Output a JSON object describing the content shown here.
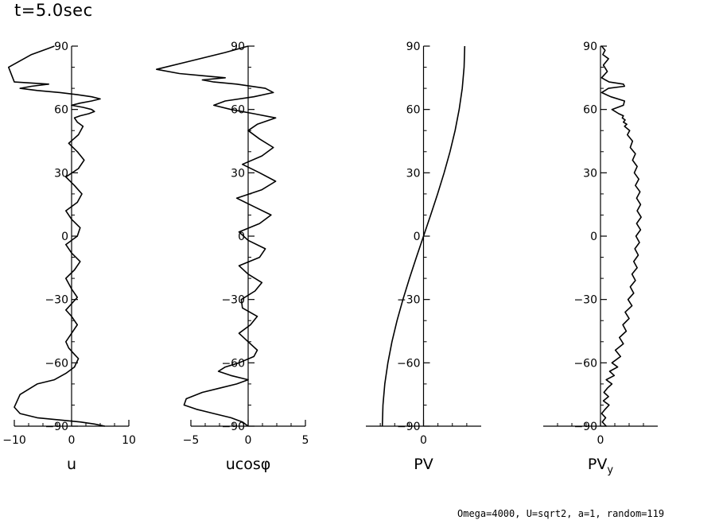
{
  "title": "t=5.0sec",
  "footer": "Omega=4000, U=sqrt2, a=1, random=119",
  "chart_data": [
    {
      "type": "line",
      "xlabel": "u",
      "xlim": [
        -10,
        10
      ],
      "xticks": [
        -10,
        0,
        10
      ],
      "ylim": [
        -90,
        90
      ],
      "yticks": [
        -90,
        -60,
        -30,
        0,
        30,
        60,
        90
      ],
      "series": [
        {
          "x": [
            5.8,
            4.0,
            1.5,
            -6,
            -9,
            -10,
            -9,
            -6,
            -3,
            -1,
            0.5,
            1.2,
            0.5,
            -0.5,
            -1,
            0,
            1,
            0,
            -1,
            0,
            1,
            0,
            -1,
            0.5,
            1.5,
            0,
            -1,
            1,
            1.5,
            0,
            -1,
            1,
            1.8,
            0.5,
            -1,
            1.2,
            2.2,
            1.0,
            -0.5,
            1.2,
            2.0,
            1.0,
            0.5,
            1.5,
            3.0,
            4.0,
            3.5,
            2.0,
            0,
            1.5,
            3.5,
            5.0,
            3.5,
            1.0,
            -2,
            -6,
            -9,
            -7,
            -4,
            -10,
            -11,
            -7,
            -4,
            -3
          ],
          "y": [
            -90,
            -89,
            -88,
            -86,
            -84,
            -81,
            -75,
            -70,
            -68,
            -65,
            -62,
            -58,
            -56,
            -53,
            -50,
            -46,
            -42,
            -38,
            -35,
            -32,
            -29,
            -25,
            -20,
            -16,
            -12,
            -8,
            -4,
            0,
            4,
            8,
            12,
            16,
            20,
            24,
            28,
            32,
            36,
            40,
            44,
            48,
            52,
            54,
            56,
            57,
            58,
            59,
            60,
            61,
            62,
            63,
            64,
            65,
            66,
            67,
            68,
            69,
            70,
            71,
            72,
            73,
            80,
            86,
            89,
            90
          ]
        }
      ]
    },
    {
      "type": "line",
      "xlabel": "ucosφ",
      "xlim": [
        -5,
        5
      ],
      "xticks": [
        -5,
        0,
        5
      ],
      "ylim": [
        -90,
        90
      ],
      "yticks": [
        -90,
        -60,
        -30,
        0,
        30,
        60,
        90
      ],
      "series": [
        {
          "x": [
            0,
            -0.5,
            -1.5,
            -3,
            -4.5,
            -5.6,
            -5.4,
            -4.0,
            -2.5,
            -1.0,
            0,
            -1.5,
            -2.6,
            -2.0,
            -0.8,
            0.5,
            0.8,
            0,
            -0.8,
            0.2,
            0.8,
            -0.5,
            -0.6,
            0.6,
            1.2,
            0,
            -0.8,
            1.0,
            1.5,
            0,
            -0.8,
            1.0,
            2.0,
            0.5,
            -1.0,
            1.2,
            2.4,
            1.0,
            -0.5,
            1.2,
            2.2,
            1.0,
            0,
            0.8,
            2.4,
            0.5,
            -1.5,
            -3.0,
            -2.0,
            0.5,
            2.2,
            1.5,
            -1.0,
            -3.0,
            -4.0,
            -2.0,
            -4.0,
            -6.0,
            -8.0,
            -5.0,
            -2.0,
            0
          ],
          "y": [
            -90,
            -88,
            -86,
            -84,
            -82,
            -80,
            -77,
            -74,
            -72,
            -70,
            -68,
            -66,
            -64,
            -62,
            -60,
            -57,
            -54,
            -50,
            -46,
            -42,
            -38,
            -34,
            -30,
            -26,
            -22,
            -18,
            -14,
            -10,
            -6,
            -2,
            2,
            6,
            10,
            14,
            18,
            22,
            26,
            30,
            34,
            38,
            42,
            46,
            50,
            53,
            56,
            58,
            60,
            62,
            64,
            66,
            68,
            70,
            72,
            73,
            74,
            75,
            76,
            77,
            79,
            83,
            87,
            90
          ]
        }
      ]
    },
    {
      "type": "line",
      "xlabel": "PV",
      "xlim": [
        -1.4,
        1.4
      ],
      "xticks": [
        0
      ],
      "ylim": [
        -90,
        90
      ],
      "yticks": [
        -90,
        -60,
        -30,
        0,
        30,
        60,
        90
      ],
      "series": [
        {
          "x": [
            -1.0,
            -0.985,
            -0.94,
            -0.866,
            -0.766,
            -0.643,
            -0.5,
            -0.342,
            -0.174,
            0,
            0.174,
            0.342,
            0.5,
            0.643,
            0.766,
            0.866,
            0.94,
            0.985,
            1.0
          ],
          "y": [
            -90,
            -80,
            -70,
            -60,
            -50,
            -40,
            -30,
            -20,
            -10,
            0,
            10,
            20,
            30,
            40,
            50,
            60,
            70,
            80,
            90
          ]
        }
      ]
    },
    {
      "type": "line",
      "xlabel": "PV",
      "xlabel_subscript": "y",
      "xlim": [
        -1,
        1
      ],
      "xticks": [
        0
      ],
      "ylim": [
        -90,
        90
      ],
      "yticks": [
        -90,
        -60,
        -30,
        0,
        30,
        60,
        90
      ],
      "series": [
        {
          "x": [
            0.1,
            0.03,
            0.09,
            0.02,
            0.08,
            0.15,
            0.05,
            0.14,
            0.06,
            0.12,
            0.2,
            0.1,
            0.24,
            0.16,
            0.3,
            0.2,
            0.35,
            0.26,
            0.4,
            0.33,
            0.45,
            0.39,
            0.5,
            0.43,
            0.55,
            0.48,
            0.58,
            0.52,
            0.61,
            0.55,
            0.64,
            0.58,
            0.66,
            0.6,
            0.68,
            0.62,
            0.7,
            0.63,
            0.71,
            0.64,
            0.7,
            0.63,
            0.69,
            0.61,
            0.67,
            0.59,
            0.64,
            0.56,
            0.61,
            0.52,
            0.56,
            0.47,
            0.51,
            0.42,
            0.46,
            0.4,
            0.43,
            0.38,
            0.4,
            0.32,
            0.2,
            0.4,
            0.42,
            0.18,
            0.02,
            0.14,
            0.42,
            0.4,
            0.15,
            0.02,
            0.12,
            0.05,
            0.14,
            0.04,
            0.08,
            0.02
          ],
          "y": [
            -90,
            -88,
            -86,
            -84,
            -82,
            -80,
            -78,
            -76,
            -74,
            -72,
            -70,
            -68,
            -66,
            -64,
            -62,
            -60,
            -57,
            -54,
            -51,
            -48,
            -45,
            -42,
            -39,
            -36,
            -33,
            -30,
            -27,
            -24,
            -21,
            -18,
            -15,
            -12,
            -9,
            -6,
            -3,
            0,
            3,
            6,
            9,
            12,
            15,
            18,
            21,
            24,
            27,
            30,
            33,
            36,
            39,
            42,
            45,
            48,
            50,
            52,
            53,
            54,
            55,
            56,
            57,
            58,
            60,
            62,
            64,
            66,
            68,
            70,
            71,
            72,
            73,
            75,
            78,
            81,
            84,
            86,
            88,
            90
          ]
        }
      ]
    }
  ]
}
